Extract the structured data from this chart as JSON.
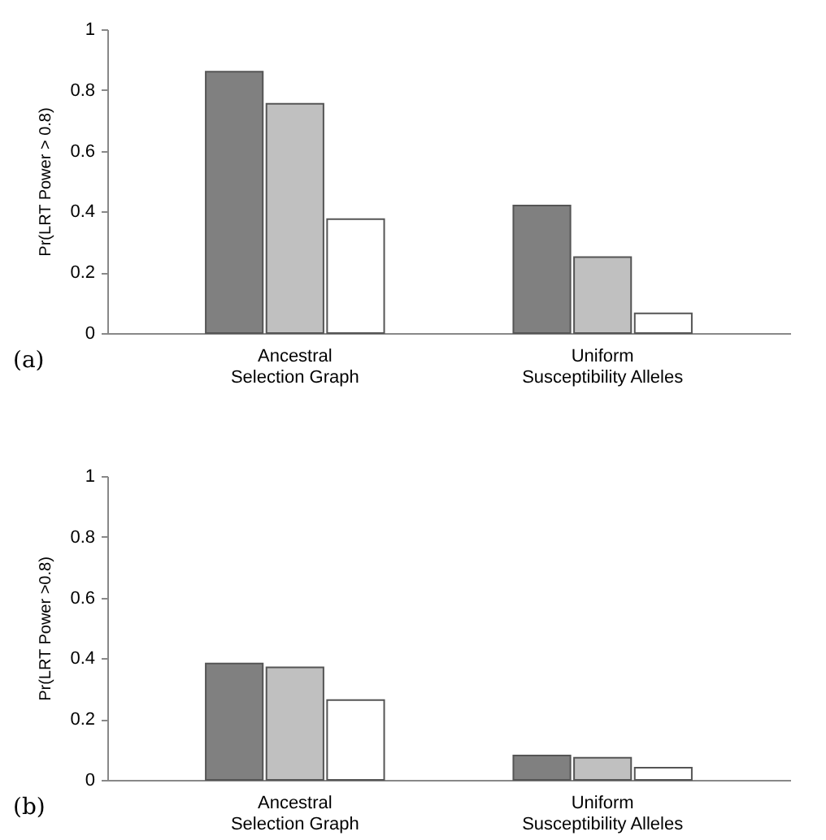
{
  "chart_data": [
    {
      "type": "bar",
      "ylabel": "Pr(LRT Power > 0.8)",
      "annotations": [
        "(a)"
      ],
      "categories": [
        "Ancestral\nSelection Graph",
        "Uniform\nSusceptibility Alleles"
      ],
      "series": [
        {
          "color": "#808080",
          "values": [
            0.86,
            0.42
          ]
        },
        {
          "color": "#c0c0c0",
          "values": [
            0.755,
            0.25
          ]
        },
        {
          "color": "#ffffff",
          "values": [
            0.375,
            0.065
          ]
        }
      ],
      "ylim": [
        0,
        1
      ],
      "yticks": [
        0,
        0.2,
        0.4,
        0.6,
        0.8,
        1
      ],
      "grid": false,
      "legend": false
    },
    {
      "type": "bar",
      "ylabel": "Pr(LRT Power >0.8)",
      "annotations": [
        "(b)"
      ],
      "categories": [
        "Ancestral\nSelection Graph",
        "Uniform\nSusceptibility Alleles"
      ],
      "series": [
        {
          "color": "#808080",
          "values": [
            0.383,
            0.08
          ]
        },
        {
          "color": "#c0c0c0",
          "values": [
            0.37,
            0.073
          ]
        },
        {
          "color": "#ffffff",
          "values": [
            0.263,
            0.04
          ]
        }
      ],
      "ylim": [
        0,
        1
      ],
      "yticks": [
        0,
        0.2,
        0.4,
        0.6,
        0.8,
        1
      ],
      "grid": false,
      "legend": false
    }
  ]
}
